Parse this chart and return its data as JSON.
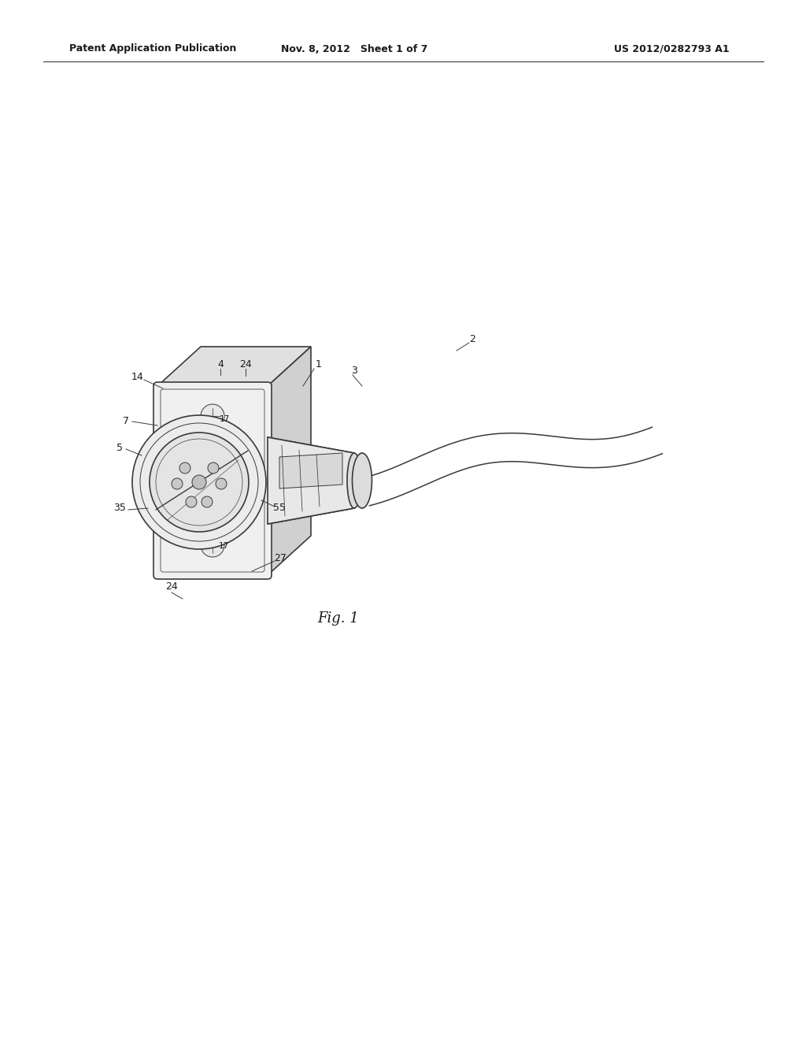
{
  "background_color": "#ffffff",
  "header_left": "Patent Application Publication",
  "header_mid": "Nov. 8, 2012   Sheet 1 of 7",
  "header_right": "US 2012/0282793 A1",
  "fig_label": "Fig. 1",
  "line_color": "#3a3a3a",
  "light_gray": "#c8c8c8",
  "mid_gray": "#b0b0b0",
  "lw_main": 1.2,
  "lw_thin": 0.7,
  "text_color": "#1a1a1a",
  "font_size_header": 9,
  "font_size_label": 9,
  "font_size_fig": 12
}
